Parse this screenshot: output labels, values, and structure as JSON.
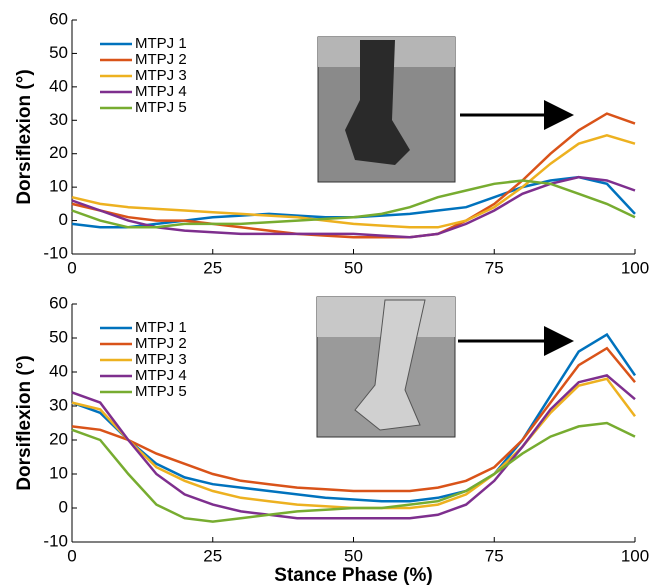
{
  "chart_data": [
    {
      "type": "line",
      "ylabel": "Dorsiflexion (°)",
      "x": [
        0,
        5,
        10,
        15,
        20,
        25,
        30,
        35,
        40,
        45,
        50,
        55,
        60,
        65,
        70,
        75,
        80,
        85,
        90,
        95,
        100
      ],
      "xlim": [
        0,
        100
      ],
      "xticks": [
        0,
        25,
        50,
        75,
        100
      ],
      "ylim": [
        -10,
        60
      ],
      "yticks": [
        -10,
        0,
        10,
        20,
        30,
        40,
        50,
        60
      ],
      "legend": "upper left",
      "series": [
        {
          "name": "MTPJ 1",
          "color": "#0072bd",
          "values": [
            -1,
            -2,
            -2,
            -1,
            0,
            1,
            1.5,
            2,
            1.5,
            1,
            1,
            1.5,
            2,
            3,
            4,
            7,
            10,
            12,
            13,
            11,
            2
          ]
        },
        {
          "name": "MTPJ 2",
          "color": "#d95319",
          "values": [
            5,
            3,
            1,
            0,
            0,
            -1,
            -2,
            -3,
            -4,
            -4.5,
            -5,
            -5,
            -5,
            -4,
            0,
            5,
            12,
            20,
            27,
            32,
            29
          ]
        },
        {
          "name": "MTPJ 3",
          "color": "#edb120",
          "values": [
            7,
            5,
            4,
            3.5,
            3,
            2.5,
            2,
            1.5,
            1,
            0,
            -1,
            -1.5,
            -2,
            -2,
            0,
            4,
            10,
            17,
            23,
            25.5,
            23
          ]
        },
        {
          "name": "MTPJ 4",
          "color": "#7e2f8e",
          "values": [
            6,
            3,
            0,
            -2,
            -3,
            -3.5,
            -4,
            -4,
            -4,
            -4,
            -4,
            -4.5,
            -5,
            -4,
            -1,
            3,
            8,
            11,
            13,
            12,
            9
          ]
        },
        {
          "name": "MTPJ 5",
          "color": "#77ac30",
          "values": [
            3,
            0,
            -2,
            -2,
            -1,
            -1,
            -1,
            -0.5,
            0,
            0.5,
            1,
            2,
            4,
            7,
            9,
            11,
            12,
            11,
            8,
            5,
            1
          ]
        }
      ]
    },
    {
      "type": "line",
      "ylabel": "Dorsiflexion (°)",
      "xlabel": "Stance Phase (%)",
      "x": [
        0,
        5,
        10,
        15,
        20,
        25,
        30,
        35,
        40,
        45,
        50,
        55,
        60,
        65,
        70,
        75,
        80,
        85,
        90,
        95,
        100
      ],
      "xlim": [
        0,
        100
      ],
      "xticks": [
        0,
        25,
        50,
        75,
        100
      ],
      "ylim": [
        -10,
        60
      ],
      "yticks": [
        -10,
        0,
        10,
        20,
        30,
        40,
        50,
        60
      ],
      "legend": "upper left",
      "series": [
        {
          "name": "MTPJ 1",
          "color": "#0072bd",
          "values": [
            31,
            28,
            20,
            13,
            9,
            7,
            6,
            5,
            4,
            3,
            2.5,
            2,
            2,
            3,
            5,
            10,
            20,
            33,
            46,
            51,
            39
          ]
        },
        {
          "name": "MTPJ 2",
          "color": "#d95319",
          "values": [
            24,
            23,
            20,
            16,
            13,
            10,
            8,
            7,
            6,
            5.5,
            5,
            5,
            5,
            6,
            8,
            12,
            20,
            31,
            42,
            47,
            37
          ]
        },
        {
          "name": "MTPJ 3",
          "color": "#edb120",
          "values": [
            31,
            29,
            20,
            12,
            8,
            5,
            3,
            2,
            1,
            0.5,
            0,
            0,
            0,
            1,
            4,
            10,
            18,
            28,
            36,
            38,
            27
          ]
        },
        {
          "name": "MTPJ 4",
          "color": "#7e2f8e",
          "values": [
            34,
            31,
            20,
            10,
            4,
            1,
            -1,
            -2,
            -3,
            -3,
            -3,
            -3,
            -3,
            -2,
            1,
            8,
            18,
            29,
            37,
            39,
            32
          ]
        },
        {
          "name": "MTPJ 5",
          "color": "#77ac30",
          "values": [
            23,
            20,
            10,
            1,
            -3,
            -4,
            -3,
            -2,
            -1,
            -0.5,
            0,
            0,
            1,
            2,
            5,
            10,
            16,
            21,
            24,
            25,
            21
          ]
        }
      ]
    }
  ]
}
